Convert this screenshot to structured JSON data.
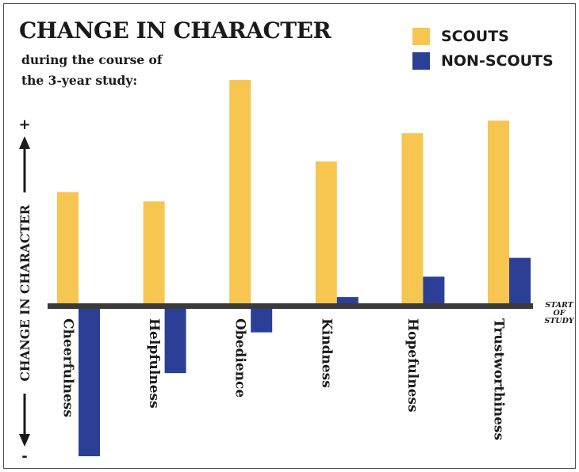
{
  "colors": {
    "scouts": "#F7C650",
    "non_scouts": "#2B3F96",
    "baseline": "#3a3a3a"
  },
  "chart_data": {
    "type": "bar",
    "title": "CHANGE IN CHARACTER",
    "subtitle": [
      "during the course of",
      "the 3-year study:"
    ],
    "ylabel": "CHANGE IN CHARACTER",
    "y_plus": "+",
    "y_minus": "-",
    "baseline_label": [
      "START",
      "OF",
      "STUDY"
    ],
    "categories": [
      "Cheerfulness",
      "Helpfulness",
      "Obedience",
      "Kindness",
      "Hopefulness",
      "Trustworthiness"
    ],
    "series": [
      {
        "name": "SCOUTS",
        "values": [
          145,
          133,
          288,
          184,
          220,
          236
        ]
      },
      {
        "name": "NON-SCOUTS",
        "values": [
          -192,
          -86,
          -34,
          11,
          37,
          61
        ]
      }
    ],
    "ylim": [
      -200,
      300
    ],
    "legend_position": "top-right"
  }
}
